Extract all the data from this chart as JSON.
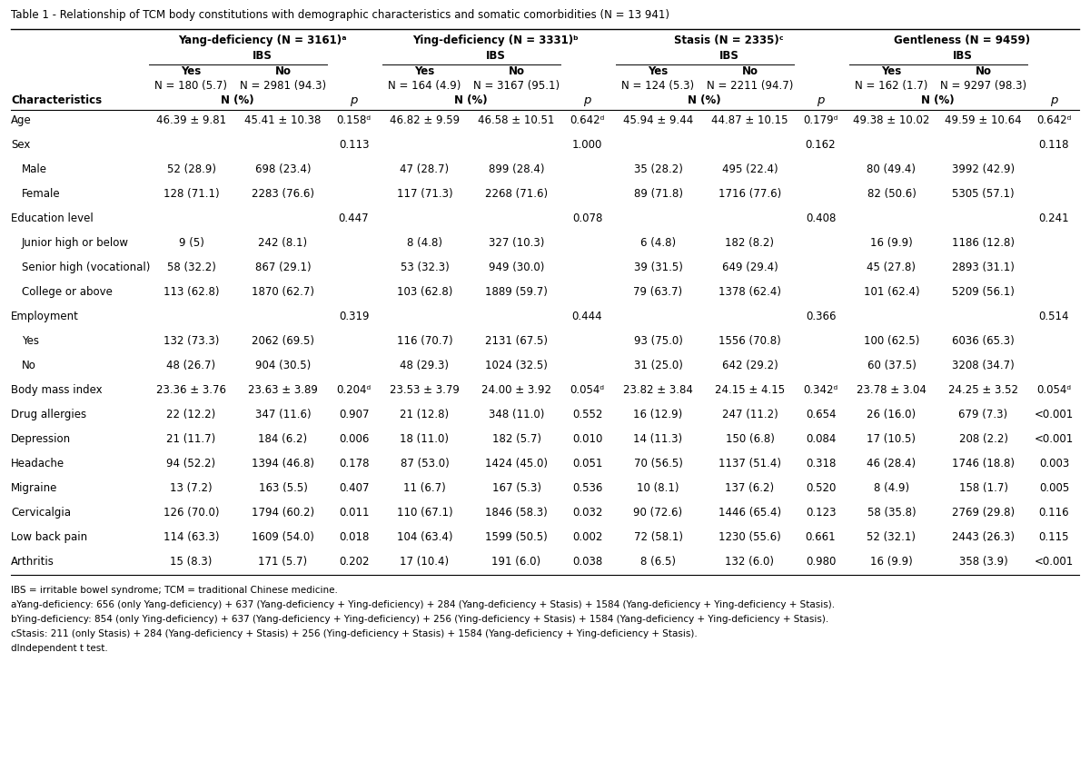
{
  "title": "Table 1 - Relationship of TCM body constitutions with demographic characteristics and somatic comorbidities (N = 13 941)",
  "col_groups": [
    {
      "name": "Yang-deficiency (N = 3161)ᵃ",
      "sub": "IBS",
      "yes_n": "N = 180 (5.7)",
      "no_n": "N = 2981 (94.3)"
    },
    {
      "name": "Ying-deficiency (N = 3331)ᵇ",
      "sub": "IBS",
      "yes_n": "N = 164 (4.9)",
      "no_n": "N = 3167 (95.1)"
    },
    {
      "name": "Stasis (N = 2335)ᶜ",
      "sub": "IBS",
      "yes_n": "N = 124 (5.3)",
      "no_n": "N = 2211 (94.7)"
    },
    {
      "name": "Gentleness (N = 9459)",
      "sub": "IBS",
      "yes_n": "N = 162 (1.7)",
      "no_n": "N = 9297 (98.3)"
    }
  ],
  "rows": [
    {
      "char": "Age",
      "vals": [
        "46.39 ± 9.81",
        "45.41 ± 10.38",
        "0.158ᵈ",
        "46.82 ± 9.59",
        "46.58 ± 10.51",
        "0.642ᵈ",
        "45.94 ± 9.44",
        "44.87 ± 10.15",
        "0.179ᵈ",
        "49.38 ± 10.02",
        "49.59 ± 10.64",
        "0.642ᵈ"
      ]
    },
    {
      "char": "Sex",
      "vals": [
        "",
        "",
        "0.113",
        "",
        "",
        "1.000",
        "",
        "",
        "0.162",
        "",
        "",
        "0.118"
      ]
    },
    {
      "char": "Male",
      "vals": [
        "52 (28.9)",
        "698 (23.4)",
        "",
        "47 (28.7)",
        "899 (28.4)",
        "",
        "35 (28.2)",
        "495 (22.4)",
        "",
        "80 (49.4)",
        "3992 (42.9)",
        ""
      ],
      "indent": true
    },
    {
      "char": "Female",
      "vals": [
        "128 (71.1)",
        "2283 (76.6)",
        "",
        "117 (71.3)",
        "2268 (71.6)",
        "",
        "89 (71.8)",
        "1716 (77.6)",
        "",
        "82 (50.6)",
        "5305 (57.1)",
        ""
      ],
      "indent": true
    },
    {
      "char": "Education level",
      "vals": [
        "",
        "",
        "0.447",
        "",
        "",
        "0.078",
        "",
        "",
        "0.408",
        "",
        "",
        "0.241"
      ]
    },
    {
      "char": "Junior high or below",
      "vals": [
        "9 (5)",
        "242 (8.1)",
        "",
        "8 (4.8)",
        "327 (10.3)",
        "",
        "6 (4.8)",
        "182 (8.2)",
        "",
        "16 (9.9)",
        "1186 (12.8)",
        ""
      ],
      "indent": true
    },
    {
      "char": "Senior high (vocational)",
      "vals": [
        "58 (32.2)",
        "867 (29.1)",
        "",
        "53 (32.3)",
        "949 (30.0)",
        "",
        "39 (31.5)",
        "649 (29.4)",
        "",
        "45 (27.8)",
        "2893 (31.1)",
        ""
      ],
      "indent": true
    },
    {
      "char": "College or above",
      "vals": [
        "113 (62.8)",
        "1870 (62.7)",
        "",
        "103 (62.8)",
        "1889 (59.7)",
        "",
        "79 (63.7)",
        "1378 (62.4)",
        "",
        "101 (62.4)",
        "5209 (56.1)",
        ""
      ],
      "indent": true
    },
    {
      "char": "Employment",
      "vals": [
        "",
        "",
        "0.319",
        "",
        "",
        "0.444",
        "",
        "",
        "0.366",
        "",
        "",
        "0.514"
      ]
    },
    {
      "char": "Yes",
      "vals": [
        "132 (73.3)",
        "2062 (69.5)",
        "",
        "116 (70.7)",
        "2131 (67.5)",
        "",
        "93 (75.0)",
        "1556 (70.8)",
        "",
        "100 (62.5)",
        "6036 (65.3)",
        ""
      ],
      "indent": true
    },
    {
      "char": "No",
      "vals": [
        "48 (26.7)",
        "904 (30.5)",
        "",
        "48 (29.3)",
        "1024 (32.5)",
        "",
        "31 (25.0)",
        "642 (29.2)",
        "",
        "60 (37.5)",
        "3208 (34.7)",
        ""
      ],
      "indent": true
    },
    {
      "char": "Body mass index",
      "vals": [
        "23.36 ± 3.76",
        "23.63 ± 3.89",
        "0.204ᵈ",
        "23.53 ± 3.79",
        "24.00 ± 3.92",
        "0.054ᵈ",
        "23.82 ± 3.84",
        "24.15 ± 4.15",
        "0.342ᵈ",
        "23.78 ± 3.04",
        "24.25 ± 3.52",
        "0.054ᵈ"
      ]
    },
    {
      "char": "Drug allergies",
      "vals": [
        "22 (12.2)",
        "347 (11.6)",
        "0.907",
        "21 (12.8)",
        "348 (11.0)",
        "0.552",
        "16 (12.9)",
        "247 (11.2)",
        "0.654",
        "26 (16.0)",
        "679 (7.3)",
        "<0.001"
      ]
    },
    {
      "char": "Depression",
      "vals": [
        "21 (11.7)",
        "184 (6.2)",
        "0.006",
        "18 (11.0)",
        "182 (5.7)",
        "0.010",
        "14 (11.3)",
        "150 (6.8)",
        "0.084",
        "17 (10.5)",
        "208 (2.2)",
        "<0.001"
      ]
    },
    {
      "char": "Headache",
      "vals": [
        "94 (52.2)",
        "1394 (46.8)",
        "0.178",
        "87 (53.0)",
        "1424 (45.0)",
        "0.051",
        "70 (56.5)",
        "1137 (51.4)",
        "0.318",
        "46 (28.4)",
        "1746 (18.8)",
        "0.003"
      ]
    },
    {
      "char": "Migraine",
      "vals": [
        "13 (7.2)",
        "163 (5.5)",
        "0.407",
        "11 (6.7)",
        "167 (5.3)",
        "0.536",
        "10 (8.1)",
        "137 (6.2)",
        "0.520",
        "8 (4.9)",
        "158 (1.7)",
        "0.005"
      ]
    },
    {
      "char": "Cervicalgia",
      "vals": [
        "126 (70.0)",
        "1794 (60.2)",
        "0.011",
        "110 (67.1)",
        "1846 (58.3)",
        "0.032",
        "90 (72.6)",
        "1446 (65.4)",
        "0.123",
        "58 (35.8)",
        "2769 (29.8)",
        "0.116"
      ]
    },
    {
      "char": "Low back pain",
      "vals": [
        "114 (63.3)",
        "1609 (54.0)",
        "0.018",
        "104 (63.4)",
        "1599 (50.5)",
        "0.002",
        "72 (58.1)",
        "1230 (55.6)",
        "0.661",
        "52 (32.1)",
        "2443 (26.3)",
        "0.115"
      ]
    },
    {
      "char": "Arthritis",
      "vals": [
        "15 (8.3)",
        "171 (5.7)",
        "0.202",
        "17 (10.4)",
        "191 (6.0)",
        "0.038",
        "8 (6.5)",
        "132 (6.0)",
        "0.980",
        "16 (9.9)",
        "358 (3.9)",
        "<0.001"
      ]
    }
  ],
  "footnotes": [
    "IBS = irritable bowel syndrome; TCM = traditional Chinese medicine.",
    "aYang-deficiency: 656 (only Yang-deficiency) + 637 (Yang-deficiency + Ying-deficiency) + 284 (Yang-deficiency + Stasis) + 1584 (Yang-deficiency + Ying-deficiency + Stasis).",
    "bYing-deficiency: 854 (only Ying-deficiency) + 637 (Yang-deficiency + Ying-deficiency) + 256 (Ying-deficiency + Stasis) + 1584 (Yang-deficiency + Ying-deficiency + Stasis).",
    "cStasis: 211 (only Stasis) + 284 (Yang-deficiency + Stasis) + 256 (Ying-deficiency + Stasis) + 1584 (Yang-deficiency + Ying-deficiency + Stasis).",
    "dIndependent t test."
  ],
  "footnote_superscripts": [
    "a",
    "b",
    "c",
    "d"
  ],
  "bg_color": "#ffffff",
  "text_color": "#000000"
}
